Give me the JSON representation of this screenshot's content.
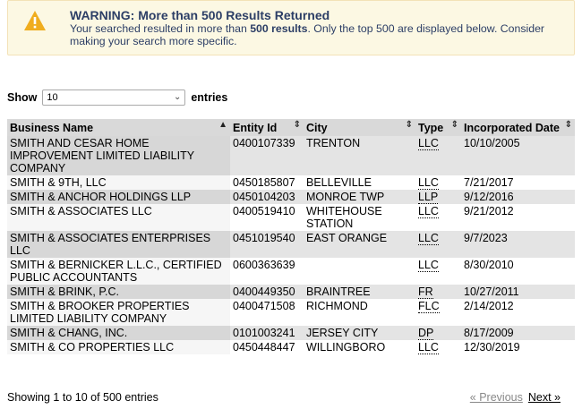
{
  "alert": {
    "title": "WARNING: More than 500 Results Returned",
    "body_pre": "Your searched resulted in more than ",
    "body_bold": "500 results",
    "body_post": ". Only the top 500 are displayed below. Consider making your search more specific.",
    "icon": "warning-triangle-icon",
    "icon_color": "#f0ad1e"
  },
  "length": {
    "show": "Show",
    "selected": "10",
    "entries": "entries"
  },
  "columns": [
    "Business Name",
    "Entity Id",
    "City",
    "Type",
    "Incorporated Date"
  ],
  "rows": [
    [
      "SMITH AND CESAR HOME IMPROVEMENT LIMITED LIABILITY COMPANY",
      "0400107339",
      "TRENTON",
      "LLC",
      "10/10/2005"
    ],
    [
      "SMITH & 9TH, LLC",
      "0450185807",
      "BELLEVILLE",
      "LLC",
      "7/21/2017"
    ],
    [
      "SMITH & ANCHOR HOLDINGS LLP",
      "0450104203",
      "MONROE TWP",
      "LLP",
      "9/12/2016"
    ],
    [
      "SMITH & ASSOCIATES LLC",
      "0400519410",
      "WHITEHOUSE STATION",
      "LLC",
      "9/21/2012"
    ],
    [
      "SMITH & ASSOCIATES ENTERPRISES LLC",
      "0451019540",
      "EAST ORANGE",
      "LLC",
      "9/7/2023"
    ],
    [
      "SMITH & BERNICKER L.L.C., CERTIFIED PUBLIC ACCOUNTANTS",
      "0600363639",
      "",
      "LLC",
      "8/30/2010"
    ],
    [
      "SMITH & BRINK, P.C.",
      "0400449350",
      "BRAINTREE",
      "FR",
      "10/27/2011"
    ],
    [
      "SMITH & BROOKER PROPERTIES LIMITED LIABILITY COMPANY",
      "0400471508",
      "RICHMOND",
      "FLC",
      "2/14/2012"
    ],
    [
      "SMITH & CHANG, INC.",
      "0101003241",
      "JERSEY CITY",
      "DP",
      "8/17/2009"
    ],
    [
      "SMITH & CO PROPERTIES LLC",
      "0450448447",
      "WILLINGBORO",
      "LLC",
      "12/30/2019"
    ]
  ],
  "info": "Showing 1 to 10 of 500 entries",
  "paginate": {
    "prev": "« Previous",
    "next": "Next »"
  }
}
